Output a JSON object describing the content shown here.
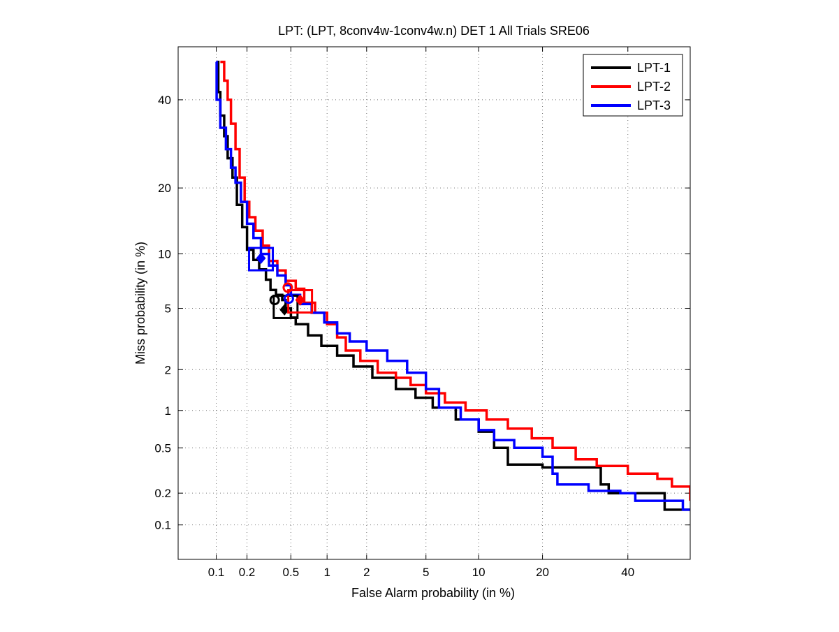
{
  "chart_data": {
    "type": "line",
    "title": "LPT: (LPT, 8conv4w-1conv4w.n) DET 1 All Trials SRE06",
    "xlabel": "False Alarm probability (in %)",
    "ylabel": "Miss probability (in %)",
    "xscale": "normal-deviate (probit)",
    "yscale": "normal-deviate (probit)",
    "xlim": [
      0.04,
      57
    ],
    "ylim": [
      0.045,
      54
    ],
    "xticks": [
      0.1,
      0.2,
      0.5,
      1,
      2,
      5,
      10,
      20,
      40
    ],
    "xtick_labels": [
      "0.1",
      "0.2",
      "0.5",
      "1",
      "2",
      "5",
      "10",
      "20",
      "40"
    ],
    "yticks": [
      0.1,
      0.2,
      0.5,
      1,
      2,
      5,
      10,
      20,
      40
    ],
    "ytick_labels": [
      "0.1",
      "0.2",
      "0.5",
      "1",
      "2",
      "5",
      "10",
      "20",
      "40"
    ],
    "grid": true,
    "legend_position": "top-right",
    "series": [
      {
        "name": "LPT-1",
        "color": "#000000",
        "points": [
          [
            0.1,
            50
          ],
          [
            0.105,
            42
          ],
          [
            0.11,
            36
          ],
          [
            0.12,
            31
          ],
          [
            0.13,
            26
          ],
          [
            0.145,
            22
          ],
          [
            0.16,
            17
          ],
          [
            0.18,
            13.5
          ],
          [
            0.2,
            10.5
          ],
          [
            0.23,
            9.3
          ],
          [
            0.26,
            8.3
          ],
          [
            0.3,
            7.3
          ],
          [
            0.33,
            6.4
          ],
          [
            0.37,
            6.0
          ],
          [
            0.42,
            5.6
          ],
          [
            0.45,
            5.0
          ],
          [
            0.5,
            4.4
          ],
          [
            0.55,
            4.0
          ],
          [
            0.7,
            3.4
          ],
          [
            0.9,
            2.9
          ],
          [
            1.2,
            2.5
          ],
          [
            1.6,
            2.1
          ],
          [
            2.2,
            1.75
          ],
          [
            3.2,
            1.45
          ],
          [
            4.3,
            1.25
          ],
          [
            5.5,
            1.05
          ],
          [
            7.5,
            0.85
          ],
          [
            10,
            0.68
          ],
          [
            12,
            0.5
          ],
          [
            14,
            0.36
          ],
          [
            20,
            0.34
          ],
          [
            31,
            0.34
          ],
          [
            33,
            0.24
          ],
          [
            35,
            0.2
          ],
          [
            45,
            0.2
          ],
          [
            50,
            0.14
          ],
          [
            57,
            0.14
          ]
        ]
      },
      {
        "name": "LPT-2",
        "color": "#ff0000",
        "points": [
          [
            0.11,
            50
          ],
          [
            0.12,
            45
          ],
          [
            0.13,
            40
          ],
          [
            0.14,
            34
          ],
          [
            0.155,
            28
          ],
          [
            0.17,
            22
          ],
          [
            0.19,
            17.5
          ],
          [
            0.21,
            15
          ],
          [
            0.24,
            13
          ],
          [
            0.28,
            11
          ],
          [
            0.32,
            9.2
          ],
          [
            0.38,
            8.2
          ],
          [
            0.45,
            7.2
          ],
          [
            0.55,
            6.5
          ],
          [
            0.65,
            5.4
          ],
          [
            0.8,
            4.7
          ],
          [
            1.0,
            4.0
          ],
          [
            1.2,
            3.3
          ],
          [
            1.4,
            2.7
          ],
          [
            1.8,
            2.3
          ],
          [
            2.4,
            1.9
          ],
          [
            3.2,
            1.75
          ],
          [
            4.0,
            1.55
          ],
          [
            5.0,
            1.35
          ],
          [
            6.5,
            1.15
          ],
          [
            8.5,
            1.0
          ],
          [
            11,
            0.85
          ],
          [
            14,
            0.72
          ],
          [
            18,
            0.6
          ],
          [
            22,
            0.5
          ],
          [
            27,
            0.4
          ],
          [
            32,
            0.35
          ],
          [
            40,
            0.3
          ],
          [
            48,
            0.27
          ],
          [
            52,
            0.23
          ],
          [
            57,
            0.17
          ]
        ]
      },
      {
        "name": "LPT-3",
        "color": "#0000ff",
        "points": [
          [
            0.1,
            50
          ],
          [
            0.101,
            40
          ],
          [
            0.11,
            33
          ],
          [
            0.125,
            28
          ],
          [
            0.14,
            24
          ],
          [
            0.155,
            21
          ],
          [
            0.175,
            17.5
          ],
          [
            0.2,
            14
          ],
          [
            0.23,
            12
          ],
          [
            0.27,
            10
          ],
          [
            0.32,
            8.7
          ],
          [
            0.38,
            7.7
          ],
          [
            0.45,
            6.8
          ],
          [
            0.5,
            6.0
          ],
          [
            0.6,
            5.3
          ],
          [
            0.75,
            4.7
          ],
          [
            0.95,
            4.1
          ],
          [
            1.2,
            3.5
          ],
          [
            1.5,
            3.1
          ],
          [
            2.0,
            2.7
          ],
          [
            2.8,
            2.3
          ],
          [
            3.8,
            1.9
          ],
          [
            5,
            1.45
          ],
          [
            6,
            1.05
          ],
          [
            8,
            0.85
          ],
          [
            10,
            0.7
          ],
          [
            12,
            0.58
          ],
          [
            15,
            0.5
          ],
          [
            20,
            0.42
          ],
          [
            22,
            0.3
          ],
          [
            23,
            0.24
          ],
          [
            30,
            0.21
          ],
          [
            38,
            0.2
          ],
          [
            42,
            0.17
          ],
          [
            53,
            0.17
          ],
          [
            55,
            0.14
          ],
          [
            57,
            0.14
          ]
        ]
      }
    ],
    "markers": [
      {
        "series": "LPT-1",
        "shape": "circle",
        "x": 0.36,
        "y": 5.6
      },
      {
        "series": "LPT-1",
        "shape": "diamond",
        "x": 0.44,
        "y": 4.9
      },
      {
        "series": "LPT-1",
        "shape": "square",
        "x": 0.45,
        "y": 5.1
      },
      {
        "series": "LPT-2",
        "shape": "circle",
        "x": 0.47,
        "y": 6.6
      },
      {
        "series": "LPT-2",
        "shape": "diamond",
        "x": 0.6,
        "y": 5.6
      },
      {
        "series": "LPT-2",
        "shape": "square",
        "x": 0.6,
        "y": 5.5
      },
      {
        "series": "LPT-3",
        "shape": "circle",
        "x": 0.48,
        "y": 5.7
      },
      {
        "series": "LPT-3",
        "shape": "diamond",
        "x": 0.27,
        "y": 9.5
      },
      {
        "series": "LPT-3",
        "shape": "square",
        "x": 0.27,
        "y": 9.4
      }
    ]
  }
}
